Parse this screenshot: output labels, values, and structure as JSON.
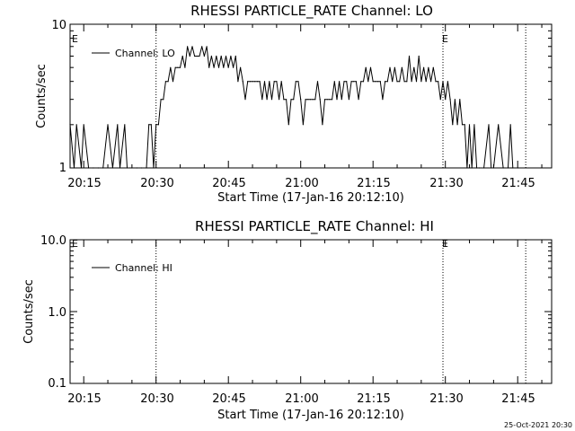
{
  "chart_data": [
    {
      "type": "line",
      "title": "RHESSI PARTICLE_RATE Channel: LO",
      "xlabel": "Start Time (17-Jan-16 20:12:10)",
      "ylabel": "Counts/sec",
      "yscale": "log",
      "ylim": [
        1,
        10
      ],
      "y_ticks": [
        "1",
        "10"
      ],
      "x_ticks": [
        "20:15",
        "20:30",
        "20:45",
        "21:00",
        "21:15",
        "21:30",
        "21:45"
      ],
      "legend": "top-left",
      "series": [
        {
          "name": "Channel: LO",
          "x": [
            "20:12:10",
            "20:13:00",
            "20:13:30",
            "20:14:30",
            "20:15:00",
            "20:16:00",
            "20:17:00",
            "20:18:00",
            "20:19:00",
            "20:20:00",
            "20:21:00",
            "20:22:00",
            "20:22:30",
            "20:23:30",
            "20:24:00",
            "20:25:00",
            "20:26:00",
            "20:27:00",
            "20:28:00",
            "20:28:30",
            "20:29:00",
            "20:29:30",
            "20:30:00",
            "20:30:30",
            "20:31:00",
            "20:31:30",
            "20:32:00",
            "20:32:30",
            "20:33:00",
            "20:33:30",
            "20:34:00",
            "20:34:30",
            "20:35:00",
            "20:35:30",
            "20:36:00",
            "20:36:30",
            "20:37:00",
            "20:37:30",
            "20:38:00",
            "20:38:30",
            "20:39:00",
            "20:39:30",
            "20:40:00",
            "20:40:30",
            "20:41:00",
            "20:41:30",
            "20:42:00",
            "20:42:30",
            "20:43:00",
            "20:43:30",
            "20:44:00",
            "20:44:30",
            "20:45:00",
            "20:45:30",
            "20:46:00",
            "20:46:30",
            "20:47:00",
            "20:47:30",
            "20:48:00",
            "20:48:30",
            "20:49:00",
            "20:49:30",
            "20:50:00",
            "20:50:30",
            "20:51:00",
            "20:51:30",
            "20:52:00",
            "20:52:30",
            "20:53:00",
            "20:53:30",
            "20:54:00",
            "20:54:30",
            "20:55:00",
            "20:55:30",
            "20:56:00",
            "20:56:30",
            "20:57:00",
            "20:57:30",
            "20:58:00",
            "20:58:30",
            "20:59:00",
            "20:59:30",
            "21:00:00",
            "21:00:30",
            "21:01:00",
            "21:01:30",
            "21:02:00",
            "21:02:30",
            "21:03:00",
            "21:03:30",
            "21:04:00",
            "21:04:30",
            "21:05:00",
            "21:05:30",
            "21:06:00",
            "21:06:30",
            "21:07:00",
            "21:07:30",
            "21:08:00",
            "21:08:30",
            "21:09:00",
            "21:09:30",
            "21:10:00",
            "21:10:30",
            "21:11:00",
            "21:11:30",
            "21:12:00",
            "21:12:30",
            "21:13:00",
            "21:13:30",
            "21:14:00",
            "21:14:30",
            "21:15:00",
            "21:15:30",
            "21:16:00",
            "21:16:30",
            "21:17:00",
            "21:17:30",
            "21:18:00",
            "21:18:30",
            "21:19:00",
            "21:19:30",
            "21:20:00",
            "21:20:30",
            "21:21:00",
            "21:21:30",
            "21:22:00",
            "21:22:30",
            "21:23:00",
            "21:23:30",
            "21:24:00",
            "21:24:30",
            "21:25:00",
            "21:25:30",
            "21:26:00",
            "21:26:30",
            "21:27:00",
            "21:27:30",
            "21:28:00",
            "21:28:30",
            "21:29:00",
            "21:29:30",
            "21:30:00",
            "21:30:30",
            "21:31:00",
            "21:31:30",
            "21:32:00",
            "21:32:30",
            "21:33:00",
            "21:33:30",
            "21:34:00",
            "21:34:30",
            "21:35:00",
            "21:35:30",
            "21:36:00",
            "21:36:30",
            "21:37:00",
            "21:38:00",
            "21:39:00",
            "21:39:30",
            "21:40:00",
            "21:41:00",
            "21:42:00",
            "21:43:00",
            "21:43:30",
            "21:44:00",
            "21:45:00"
          ],
          "y": [
            2,
            1,
            2,
            1,
            2,
            1,
            1,
            1,
            1,
            2,
            1,
            2,
            1,
            2,
            1,
            1,
            1,
            1,
            1,
            2,
            2,
            1,
            2,
            2,
            3,
            3,
            4,
            4,
            5,
            4,
            5,
            5,
            5,
            6,
            5,
            7,
            6,
            7,
            6,
            6,
            6,
            7,
            6,
            7,
            5,
            6,
            5,
            6,
            5,
            6,
            5,
            6,
            5,
            6,
            5,
            6,
            4,
            5,
            4,
            3,
            4,
            4,
            4,
            4,
            4,
            4,
            3,
            4,
            3,
            4,
            3,
            4,
            4,
            3,
            4,
            3,
            3,
            2,
            3,
            3,
            4,
            4,
            3,
            2,
            3,
            3,
            3,
            3,
            3,
            4,
            3,
            2,
            3,
            3,
            3,
            3,
            4,
            3,
            4,
            3,
            4,
            4,
            3,
            4,
            4,
            4,
            3,
            4,
            4,
            5,
            4,
            5,
            4,
            4,
            4,
            4,
            3,
            4,
            4,
            5,
            4,
            5,
            4,
            4,
            5,
            4,
            4,
            6,
            4,
            5,
            4,
            6,
            4,
            5,
            4,
            5,
            4,
            5,
            4,
            4,
            3,
            4,
            3,
            4,
            3,
            2,
            3,
            2,
            3,
            2,
            2,
            1,
            2,
            1,
            2,
            1,
            1,
            1,
            2,
            1,
            1,
            2,
            1,
            1,
            2,
            1,
            1
          ]
        }
      ]
    },
    {
      "type": "line",
      "title": "RHESSI PARTICLE_RATE Channel: HI",
      "xlabel": "Start Time (17-Jan-16 20:12:10)",
      "ylabel": "Counts/sec",
      "yscale": "log",
      "ylim": [
        0.1,
        10
      ],
      "y_ticks": [
        "0.1",
        "1.0",
        "10.0"
      ],
      "x_ticks": [
        "20:15",
        "20:30",
        "20:45",
        "21:00",
        "21:15",
        "21:30",
        "21:45"
      ],
      "legend": "top-left",
      "series": [
        {
          "name": "Channel: HI",
          "x": [],
          "y": []
        }
      ]
    }
  ],
  "event_marker": "E",
  "timestamp": "25-Oct-2021 20:30"
}
